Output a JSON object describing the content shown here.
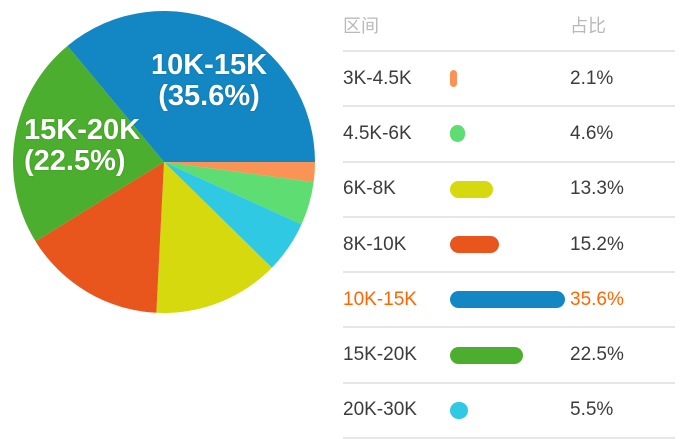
{
  "chart_data": {
    "type": "pie",
    "title": "",
    "categories": [
      "3K-4.5K",
      "4.5K-6K",
      "6K-8K",
      "8K-10K",
      "10K-15K",
      "15K-20K",
      "20K-30K"
    ],
    "values": [
      2.1,
      4.6,
      13.3,
      15.2,
      35.6,
      22.5,
      5.5
    ],
    "value_suffix": "%",
    "colors": [
      "#fb9357",
      "#5ddd72",
      "#d5d90e",
      "#e8551d",
      "#1287c3",
      "#4cae2e",
      "#30c9e3"
    ],
    "highlighted_index": 4,
    "legend_position": "right-table",
    "slice_order": "ascending-by-value-clockwise-from-3-oclock",
    "pie_slice_labels": [
      {
        "category": "10K-15K",
        "line1": "10K-15K",
        "line2": "(35.6%)"
      },
      {
        "category": "15K-20K",
        "line1": "15K-20K",
        "line2": "(22.5%)"
      }
    ]
  },
  "table": {
    "col_range_header": "区间",
    "col_share_header": "占比"
  },
  "styles": {
    "highlight_text_color": "#ff6600",
    "divider_color": "#e6e6e6",
    "header_text_color": "#b9b9b9",
    "row_text_color": "#3c3c3c"
  }
}
